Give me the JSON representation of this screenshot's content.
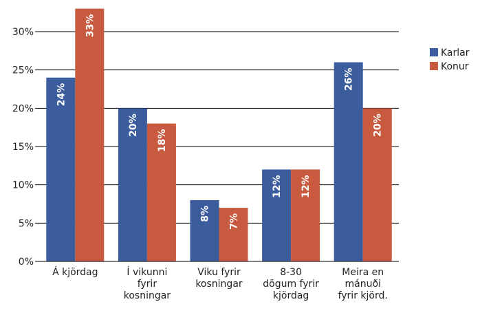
{
  "chart_data": {
    "type": "bar",
    "categories": [
      [
        "Á kjördag"
      ],
      [
        "Í vikunni",
        "fyrir",
        "kosningar"
      ],
      [
        "Viku fyrir",
        "kosningar"
      ],
      [
        "8-30",
        "dögum fyrir",
        "kjördag"
      ],
      [
        "Meira en",
        "mánuði",
        "fyrir kjörd."
      ]
    ],
    "series": [
      {
        "name": "Karlar",
        "color": "#3b5d9e",
        "values": [
          24,
          20,
          8,
          12,
          26
        ],
        "value_labels": [
          "24%",
          "20%",
          "8%",
          "12%",
          "26%"
        ]
      },
      {
        "name": "Konur",
        "color": "#c85a3f",
        "values": [
          33,
          18,
          7,
          12,
          20
        ],
        "value_labels": [
          "33%",
          "18%",
          "7%",
          "12%",
          "20%"
        ]
      }
    ],
    "ylim": [
      0,
      30
    ],
    "yticks": [
      {
        "value": 0,
        "label": "0%"
      },
      {
        "value": 5,
        "label": "5%"
      },
      {
        "value": 10,
        "label": "10%"
      },
      {
        "value": 15,
        "label": "15%"
      },
      {
        "value": 20,
        "label": "20%"
      },
      {
        "value": 25,
        "label": "25%"
      },
      {
        "value": 30,
        "label": "30%"
      }
    ],
    "grid": true,
    "legend": "right"
  }
}
